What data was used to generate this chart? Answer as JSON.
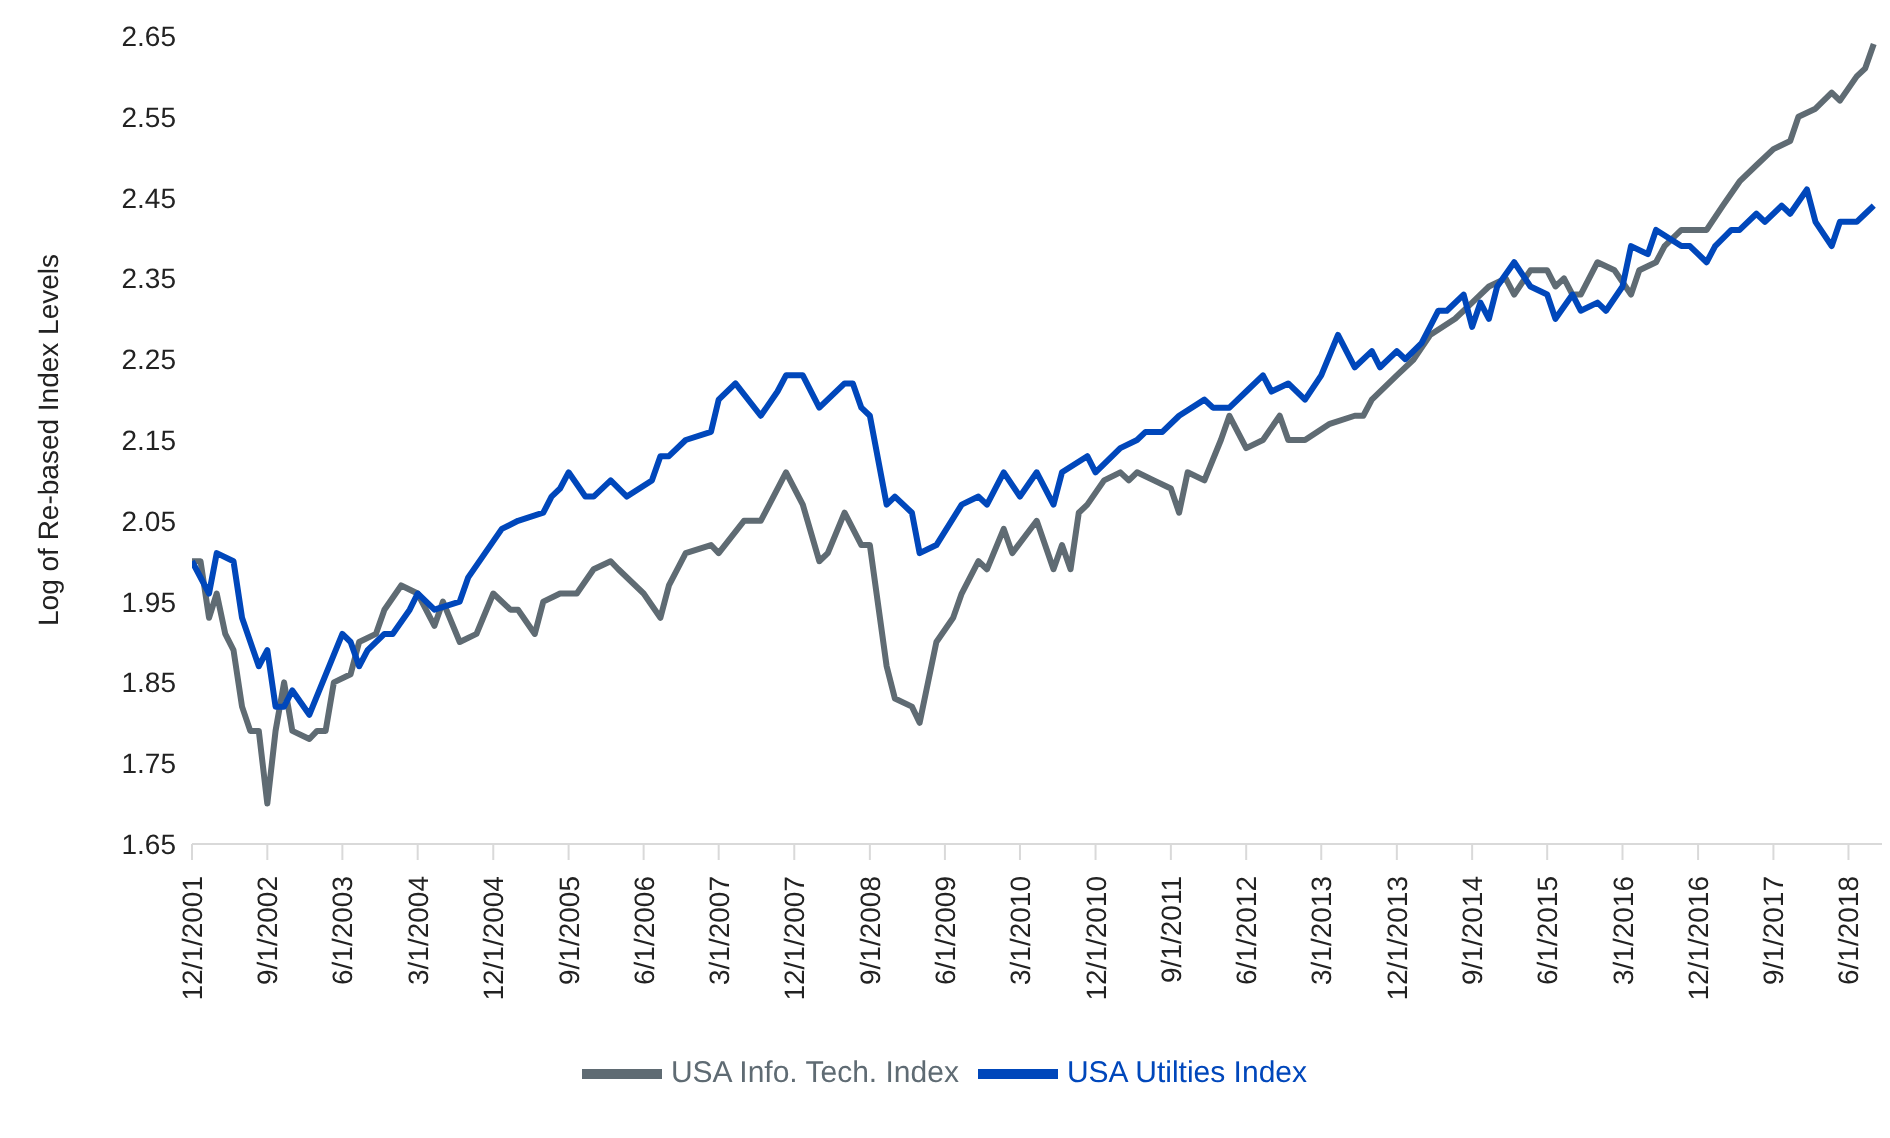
{
  "chart_data": {
    "type": "line",
    "ylabel": "Log of Re-based Index Levels",
    "ylim": [
      1.65,
      2.65
    ],
    "yticks": [
      1.65,
      1.75,
      1.85,
      1.95,
      2.05,
      2.15,
      2.25,
      2.35,
      2.45,
      2.55,
      2.65
    ],
    "xlim": [
      "2001-12",
      "2018-10"
    ],
    "xticks": [
      {
        "value": "2001-12",
        "label": "12/1/2001"
      },
      {
        "value": "2002-09",
        "label": "9/1/2002"
      },
      {
        "value": "2003-06",
        "label": "6/1/2003"
      },
      {
        "value": "2004-03",
        "label": "3/1/2004"
      },
      {
        "value": "2004-12",
        "label": "12/1/2004"
      },
      {
        "value": "2005-09",
        "label": "9/1/2005"
      },
      {
        "value": "2006-06",
        "label": "6/1/2006"
      },
      {
        "value": "2007-03",
        "label": "3/1/2007"
      },
      {
        "value": "2007-12",
        "label": "12/1/2007"
      },
      {
        "value": "2008-09",
        "label": "9/1/2008"
      },
      {
        "value": "2009-06",
        "label": "6/1/2009"
      },
      {
        "value": "2010-03",
        "label": "3/1/2010"
      },
      {
        "value": "2010-12",
        "label": "12/1/2010"
      },
      {
        "value": "2011-09",
        "label": "9/1/2011"
      },
      {
        "value": "2012-06",
        "label": "6/1/2012"
      },
      {
        "value": "2013-03",
        "label": "3/1/2013"
      },
      {
        "value": "2013-12",
        "label": "12/1/2013"
      },
      {
        "value": "2014-09",
        "label": "9/1/2014"
      },
      {
        "value": "2015-06",
        "label": "6/1/2015"
      },
      {
        "value": "2016-03",
        "label": "3/1/2016"
      },
      {
        "value": "2016-12",
        "label": "12/1/2016"
      },
      {
        "value": "2017-09",
        "label": "9/1/2017"
      },
      {
        "value": "2018-06",
        "label": "6/1/2018"
      }
    ],
    "grid": false,
    "legend": "bottom",
    "marker": "none",
    "line_style": "solid",
    "series": [
      {
        "name": "USA Info. Tech. Index",
        "color": "#5f6b73",
        "x": [
          "2001-12",
          "2002-01",
          "2002-02",
          "2002-03",
          "2002-04",
          "2002-05",
          "2002-06",
          "2002-07",
          "2002-08",
          "2002-09",
          "2002-10",
          "2002-11",
          "2002-12",
          "2003-02",
          "2003-03",
          "2003-04",
          "2003-05",
          "2003-07",
          "2003-08",
          "2003-10",
          "2003-11",
          "2004-01",
          "2004-03",
          "2004-05",
          "2004-06",
          "2004-08",
          "2004-10",
          "2004-12",
          "2005-02",
          "2005-03",
          "2005-05",
          "2005-06",
          "2005-08",
          "2005-10",
          "2005-12",
          "2006-02",
          "2006-03",
          "2006-06",
          "2006-08",
          "2006-09",
          "2006-11",
          "2007-02",
          "2007-03",
          "2007-06",
          "2007-08",
          "2007-09",
          "2007-11",
          "2008-01",
          "2008-03",
          "2008-04",
          "2008-06",
          "2008-08",
          "2008-09",
          "2008-11",
          "2008-12",
          "2009-02",
          "2009-03",
          "2009-05",
          "2009-07",
          "2009-08",
          "2009-10",
          "2009-11",
          "2010-01",
          "2010-02",
          "2010-05",
          "2010-07",
          "2010-08",
          "2010-09",
          "2010-10",
          "2010-11",
          "2011-01",
          "2011-03",
          "2011-04",
          "2011-05",
          "2011-07",
          "2011-09",
          "2011-10",
          "2011-11",
          "2012-01",
          "2012-03",
          "2012-04",
          "2012-06",
          "2012-08",
          "2012-10",
          "2012-11",
          "2013-01",
          "2013-04",
          "2013-07",
          "2013-08",
          "2013-09",
          "2013-12",
          "2014-02",
          "2014-04",
          "2014-07",
          "2014-09",
          "2014-11",
          "2015-01",
          "2015-02",
          "2015-04",
          "2015-06",
          "2015-07",
          "2015-08",
          "2015-09",
          "2015-10",
          "2015-12",
          "2016-02",
          "2016-04",
          "2016-05",
          "2016-07",
          "2016-08",
          "2016-10",
          "2017-01",
          "2017-03",
          "2017-05",
          "2017-07",
          "2017-09",
          "2017-11",
          "2017-12",
          "2018-02",
          "2018-04",
          "2018-05",
          "2018-07",
          "2018-08",
          "2018-09"
        ],
        "values": [
          2.0,
          2.0,
          1.93,
          1.96,
          1.91,
          1.89,
          1.82,
          1.79,
          1.79,
          1.7,
          1.79,
          1.85,
          1.79,
          1.78,
          1.79,
          1.79,
          1.85,
          1.86,
          1.9,
          1.91,
          1.94,
          1.97,
          1.96,
          1.92,
          1.95,
          1.9,
          1.91,
          1.96,
          1.94,
          1.94,
          1.91,
          1.95,
          1.96,
          1.96,
          1.99,
          2.0,
          1.99,
          1.96,
          1.93,
          1.97,
          2.01,
          2.02,
          2.01,
          2.05,
          2.05,
          2.07,
          2.11,
          2.07,
          2.0,
          2.01,
          2.06,
          2.02,
          2.02,
          1.87,
          1.83,
          1.82,
          1.8,
          1.9,
          1.93,
          1.96,
          2.0,
          1.99,
          2.04,
          2.01,
          2.05,
          1.99,
          2.02,
          1.99,
          2.06,
          2.07,
          2.1,
          2.11,
          2.1,
          2.11,
          2.1,
          2.09,
          2.06,
          2.11,
          2.1,
          2.15,
          2.18,
          2.14,
          2.15,
          2.18,
          2.15,
          2.15,
          2.17,
          2.18,
          2.18,
          2.2,
          2.23,
          2.25,
          2.28,
          2.3,
          2.32,
          2.34,
          2.35,
          2.33,
          2.36,
          2.36,
          2.34,
          2.35,
          2.33,
          2.33,
          2.37,
          2.36,
          2.33,
          2.36,
          2.37,
          2.39,
          2.41,
          2.41,
          2.44,
          2.47,
          2.49,
          2.51,
          2.52,
          2.55,
          2.56,
          2.58,
          2.57,
          2.6,
          2.61,
          2.64
        ]
      },
      {
        "name": "USA Utilties Index",
        "color": "#0047bb",
        "x": [
          "2001-12",
          "2002-02",
          "2002-03",
          "2002-05",
          "2002-06",
          "2002-08",
          "2002-09",
          "2002-10",
          "2002-11",
          "2002-12",
          "2003-02",
          "2003-06",
          "2003-07",
          "2003-08",
          "2003-09",
          "2003-11",
          "2003-12",
          "2004-02",
          "2004-03",
          "2004-05",
          "2004-08",
          "2004-09",
          "2004-11",
          "2005-01",
          "2005-03",
          "2005-06",
          "2005-07",
          "2005-08",
          "2005-09",
          "2005-11",
          "2005-12",
          "2006-02",
          "2006-04",
          "2006-07",
          "2006-08",
          "2006-09",
          "2006-11",
          "2007-02",
          "2007-03",
          "2007-05",
          "2007-08",
          "2007-10",
          "2007-11",
          "2008-01",
          "2008-03",
          "2008-06",
          "2008-07",
          "2008-08",
          "2008-09",
          "2008-11",
          "2008-12",
          "2009-02",
          "2009-03",
          "2009-05",
          "2009-08",
          "2009-10",
          "2009-11",
          "2010-01",
          "2010-03",
          "2010-05",
          "2010-07",
          "2010-08",
          "2010-11",
          "2010-12",
          "2011-03",
          "2011-05",
          "2011-06",
          "2011-08",
          "2011-10",
          "2012-01",
          "2012-02",
          "2012-04",
          "2012-06",
          "2012-08",
          "2012-09",
          "2012-11",
          "2013-01",
          "2013-03",
          "2013-05",
          "2013-07",
          "2013-09",
          "2013-10",
          "2013-12",
          "2014-01",
          "2014-03",
          "2014-05",
          "2014-06",
          "2014-08",
          "2014-09",
          "2014-10",
          "2014-11",
          "2014-12",
          "2015-02",
          "2015-04",
          "2015-06",
          "2015-07",
          "2015-09",
          "2015-10",
          "2015-12",
          "2016-01",
          "2016-03",
          "2016-04",
          "2016-06",
          "2016-07",
          "2016-10",
          "2016-11",
          "2017-01",
          "2017-02",
          "2017-04",
          "2017-05",
          "2017-07",
          "2017-08",
          "2017-10",
          "2017-11",
          "2018-01",
          "2018-02",
          "2018-04",
          "2018-05",
          "2018-07",
          "2018-08",
          "2018-09"
        ],
        "values": [
          2.0,
          1.96,
          2.01,
          2.0,
          1.93,
          1.87,
          1.89,
          1.82,
          1.82,
          1.84,
          1.81,
          1.91,
          1.9,
          1.87,
          1.89,
          1.91,
          1.91,
          1.94,
          1.96,
          1.94,
          1.95,
          1.98,
          2.01,
          2.04,
          2.05,
          2.06,
          2.08,
          2.09,
          2.11,
          2.08,
          2.08,
          2.1,
          2.08,
          2.1,
          2.13,
          2.13,
          2.15,
          2.16,
          2.2,
          2.22,
          2.18,
          2.21,
          2.23,
          2.23,
          2.19,
          2.22,
          2.22,
          2.19,
          2.18,
          2.07,
          2.08,
          2.06,
          2.01,
          2.02,
          2.07,
          2.08,
          2.07,
          2.11,
          2.08,
          2.11,
          2.07,
          2.11,
          2.13,
          2.11,
          2.14,
          2.15,
          2.16,
          2.16,
          2.18,
          2.2,
          2.19,
          2.19,
          2.21,
          2.23,
          2.21,
          2.22,
          2.2,
          2.23,
          2.28,
          2.24,
          2.26,
          2.24,
          2.26,
          2.25,
          2.27,
          2.31,
          2.31,
          2.33,
          2.29,
          2.32,
          2.3,
          2.34,
          2.37,
          2.34,
          2.33,
          2.3,
          2.33,
          2.31,
          2.32,
          2.31,
          2.34,
          2.39,
          2.38,
          2.41,
          2.39,
          2.39,
          2.37,
          2.39,
          2.41,
          2.41,
          2.43,
          2.42,
          2.44,
          2.43,
          2.46,
          2.42,
          2.39,
          2.42,
          2.42,
          2.43,
          2.44
        ]
      }
    ]
  }
}
